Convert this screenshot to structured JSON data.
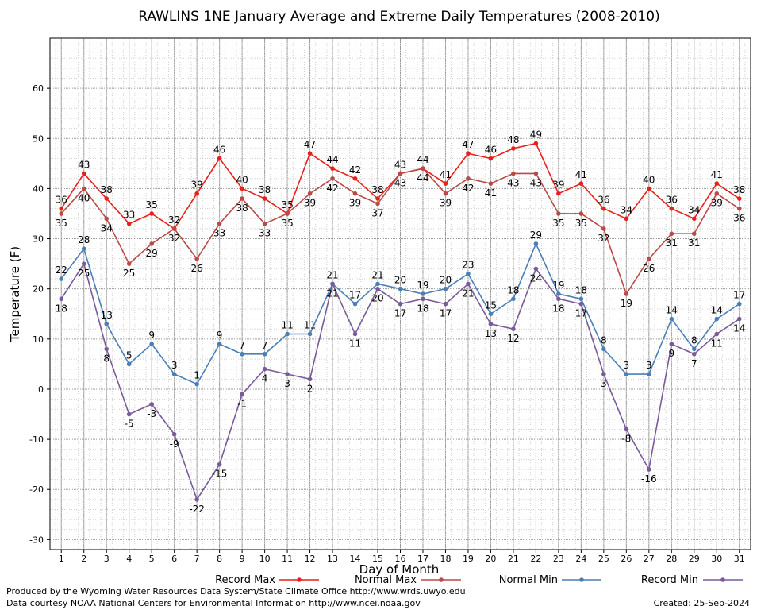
{
  "chart_data": {
    "type": "line",
    "title": "RAWLINS 1NE January Average and Extreme Daily Temperatures (2008-2010)",
    "xlabel": "Day of Month",
    "ylabel": "Temperature (F)",
    "ylim": [
      -32,
      70
    ],
    "yticks": [
      -30,
      -20,
      -10,
      0,
      10,
      20,
      30,
      40,
      50,
      60
    ],
    "x": [
      1,
      2,
      3,
      4,
      5,
      6,
      7,
      8,
      9,
      10,
      11,
      12,
      13,
      14,
      15,
      16,
      17,
      18,
      19,
      20,
      21,
      22,
      23,
      24,
      25,
      26,
      27,
      28,
      29,
      30,
      31
    ],
    "grid": true,
    "legend_position": "bottom",
    "series": [
      {
        "name": "Record Max",
        "color": "#e8201c",
        "values": [
          36,
          43,
          38,
          33,
          35,
          32,
          39,
          46,
          40,
          38,
          35,
          47,
          44,
          42,
          38,
          43,
          44,
          41,
          47,
          46,
          48,
          49,
          39,
          41,
          36,
          34,
          40,
          36,
          34,
          41,
          38
        ]
      },
      {
        "name": "Normal Max",
        "color": "#b94a48",
        "values": [
          35,
          40,
          34,
          25,
          29,
          32,
          26,
          33,
          38,
          33,
          35,
          39,
          42,
          39,
          37,
          43,
          44,
          39,
          42,
          41,
          43,
          43,
          35,
          35,
          32,
          19,
          26,
          31,
          31,
          39,
          36
        ]
      },
      {
        "name": "Normal Min",
        "color": "#4a7fb5",
        "values": [
          22,
          28,
          13,
          5,
          9,
          3,
          1,
          9,
          7,
          7,
          11,
          11,
          21,
          17,
          21,
          20,
          19,
          20,
          23,
          15,
          18,
          29,
          19,
          18,
          8,
          3,
          3,
          14,
          8,
          14,
          17
        ]
      },
      {
        "name": "Record Min",
        "color": "#7a5a9a",
        "values": [
          18,
          25,
          8,
          -5,
          -3,
          -9,
          -22,
          -15,
          -1,
          4,
          3,
          2,
          21,
          11,
          20,
          17,
          18,
          17,
          21,
          13,
          12,
          24,
          18,
          17,
          3,
          -8,
          -16,
          9,
          7,
          11,
          14
        ]
      }
    ]
  },
  "footer": {
    "produced_by": "Produced by the Wyoming Water Resources Data System/State Climate Office http://www.wrds.uwyo.edu",
    "courtesy": "Data courtesy NOAA National Centers for Environmental Information http://www.ncei.noaa.gov",
    "created": "Created:  25-Sep-2024"
  }
}
